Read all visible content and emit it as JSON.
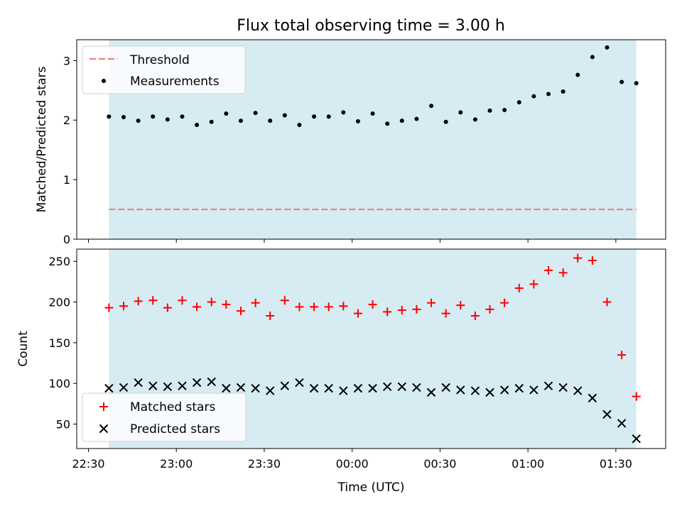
{
  "title": "Flux total observing time = 3.00 h",
  "chart_data": [
    {
      "type": "scatter",
      "panel": "top",
      "ylabel": "Matched/Predicted stars",
      "ylim": [
        0,
        3.35
      ],
      "yticks": [
        0,
        1,
        2,
        3
      ],
      "xlim_minutes_after_2230": [
        -4,
        197
      ],
      "shaded_span_minutes_after_2230": [
        7,
        187
      ],
      "threshold": 0.5,
      "threshold_color": "#f08080",
      "marker_color": "#000000",
      "legend_placement": "upper-left",
      "legend": [
        "Threshold",
        "Measurements"
      ],
      "x_minutes_after_2230": [
        7,
        12,
        17,
        22,
        27,
        32,
        37,
        42,
        47,
        52,
        57,
        62,
        67,
        72,
        77,
        82,
        87,
        92,
        97,
        102,
        107,
        112,
        117,
        122,
        127,
        132,
        137,
        142,
        147,
        152,
        157,
        162,
        167,
        172,
        177,
        182,
        187
      ],
      "series": [
        {
          "name": "Measurements",
          "values": [
            2.06,
            2.05,
            1.99,
            2.06,
            2.01,
            2.06,
            1.92,
            1.97,
            2.11,
            1.99,
            2.12,
            1.99,
            2.08,
            1.92,
            2.06,
            2.06,
            2.13,
            1.98,
            2.11,
            1.94,
            1.99,
            2.02,
            2.24,
            1.97,
            2.13,
            2.01,
            2.16,
            2.17,
            2.3,
            2.4,
            2.44,
            2.48,
            2.76,
            3.06,
            3.22,
            2.64,
            2.62
          ]
        }
      ]
    },
    {
      "type": "scatter",
      "panel": "bottom",
      "xlabel": "Time (UTC)",
      "ylabel": "Count",
      "ylim": [
        20,
        265
      ],
      "yticks": [
        50,
        100,
        150,
        200,
        250
      ],
      "xticks_minutes_after_2230": [
        0,
        30,
        60,
        90,
        120,
        150,
        180
      ],
      "xticklabels": [
        "22:30",
        "23:00",
        "23:30",
        "00:00",
        "00:30",
        "01:00",
        "01:30"
      ],
      "legend_placement": "lower-left",
      "x_minutes_after_2230": [
        7,
        12,
        17,
        22,
        27,
        32,
        37,
        42,
        47,
        52,
        57,
        62,
        67,
        72,
        77,
        82,
        87,
        92,
        97,
        102,
        107,
        112,
        117,
        122,
        127,
        132,
        137,
        142,
        147,
        152,
        157,
        162,
        167,
        172,
        177,
        182,
        187
      ],
      "series": [
        {
          "name": "Matched stars",
          "marker": "+",
          "color": "#ff0000",
          "values": [
            193,
            195,
            201,
            202,
            193,
            202,
            194,
            200,
            197,
            189,
            199,
            183,
            202,
            194,
            194,
            194,
            195,
            186,
            197,
            188,
            190,
            191,
            199,
            186,
            196,
            183,
            191,
            199,
            217,
            222,
            239,
            236,
            254,
            251,
            200,
            135,
            84
          ]
        },
        {
          "name": "Predicted stars",
          "marker": "x",
          "color": "#000000",
          "values": [
            94,
            95,
            101,
            97,
            96,
            97,
            101,
            102,
            94,
            95,
            94,
            91,
            97,
            101,
            94,
            94,
            91,
            94,
            94,
            96,
            96,
            95,
            89,
            95,
            92,
            91,
            89,
            92,
            94,
            92,
            97,
            95,
            91,
            82,
            62,
            51,
            32
          ]
        }
      ]
    }
  ],
  "colors": {
    "shade": "#add8e6",
    "shade_opacity": 0.5
  }
}
